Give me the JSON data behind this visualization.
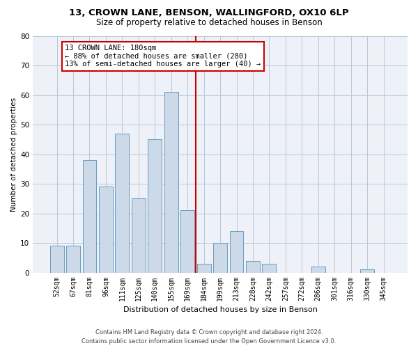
{
  "title_line1": "13, CROWN LANE, BENSON, WALLINGFORD, OX10 6LP",
  "title_line2": "Size of property relative to detached houses in Benson",
  "xlabel": "Distribution of detached houses by size in Benson",
  "ylabel": "Number of detached properties",
  "categories": [
    "52sqm",
    "67sqm",
    "81sqm",
    "96sqm",
    "111sqm",
    "125sqm",
    "140sqm",
    "155sqm",
    "169sqm",
    "184sqm",
    "199sqm",
    "213sqm",
    "228sqm",
    "242sqm",
    "257sqm",
    "272sqm",
    "286sqm",
    "301sqm",
    "316sqm",
    "330sqm",
    "345sqm"
  ],
  "values": [
    9,
    9,
    38,
    29,
    47,
    25,
    45,
    61,
    21,
    3,
    10,
    14,
    4,
    3,
    0,
    0,
    2,
    0,
    0,
    1,
    0
  ],
  "bar_color": "#ccd9e8",
  "bar_edge_color": "#6a9dbe",
  "vline_x_index": 8,
  "vline_color": "#cc0000",
  "ylim": [
    0,
    80
  ],
  "yticks": [
    0,
    10,
    20,
    30,
    40,
    50,
    60,
    70,
    80
  ],
  "annotation_title": "13 CROWN LANE: 180sqm",
  "annotation_line1": "← 88% of detached houses are smaller (280)",
  "annotation_line2": "13% of semi-detached houses are larger (40) →",
  "annotation_box_color": "#ffffff",
  "annotation_box_edge_color": "#cc0000",
  "footer_line1": "Contains HM Land Registry data © Crown copyright and database right 2024.",
  "footer_line2": "Contains public sector information licensed under the Open Government Licence v3.0.",
  "bg_color": "#eef2f8",
  "grid_color": "#b8c8d8",
  "title_fontsize": 9.5,
  "subtitle_fontsize": 8.5,
  "ylabel_fontsize": 7.5,
  "xlabel_fontsize": 8,
  "tick_fontsize": 7,
  "footer_fontsize": 6,
  "annot_fontsize": 7.5
}
